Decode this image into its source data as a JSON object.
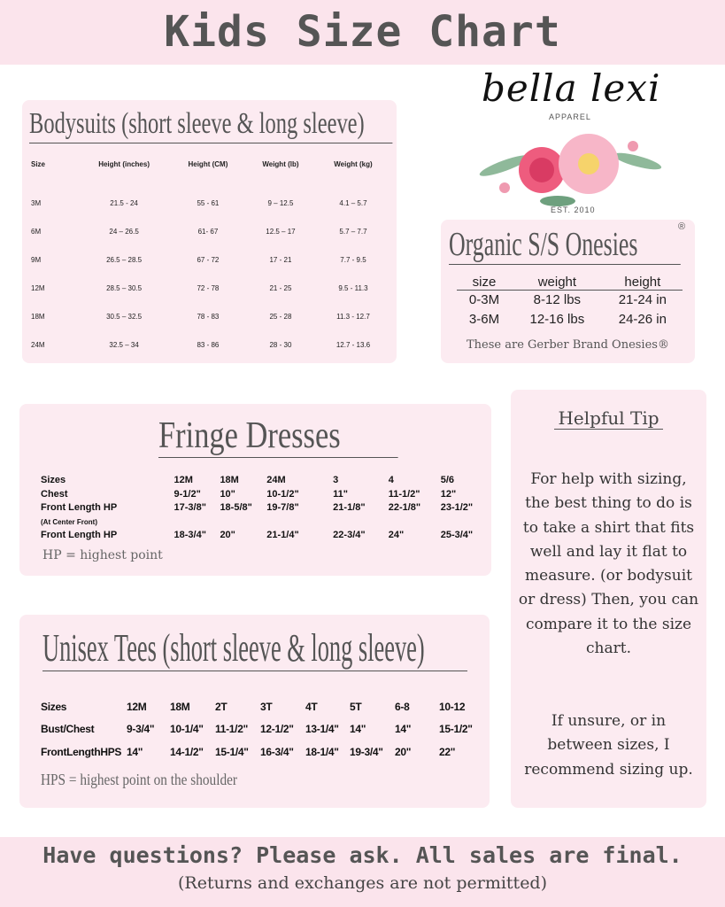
{
  "header": {
    "title": "Kids Size Chart"
  },
  "logo": {
    "name": "bella lexi",
    "sub": "APPAREL",
    "est": "EST. 2010"
  },
  "bodysuits": {
    "title": "Bodysuits (short sleeve & long sleeve)",
    "columns": [
      "Size",
      "Height (inches)",
      "Height (CM)",
      "Weight (lb)",
      "Weight (kg)"
    ],
    "rows": [
      [
        "3M",
        "21.5 - 24",
        "55 - 61",
        "9 – 12.5",
        "4.1 – 5.7"
      ],
      [
        "6M",
        "24 – 26.5",
        "61- 67",
        "12.5 – 17",
        "5.7 – 7.7"
      ],
      [
        "9M",
        "26.5 – 28.5",
        "67 - 72",
        "17 - 21",
        "7.7 - 9.5"
      ],
      [
        "12M",
        "28.5 – 30.5",
        "72 - 78",
        "21 - 25",
        "9.5 - 11.3"
      ],
      [
        "18M",
        "30.5 – 32.5",
        "78 - 83",
        "25 - 28",
        "11.3 - 12.7"
      ],
      [
        "24M",
        "32.5 – 34",
        "83 - 86",
        "28 - 30",
        "12.7 - 13.6"
      ]
    ]
  },
  "organic": {
    "title": "Organic S/S Onesies",
    "registered": "®",
    "columns": [
      "size",
      "weight",
      "height"
    ],
    "rows": [
      [
        "0-3M",
        "8-12 lbs",
        "21-24 in"
      ],
      [
        "3-6M",
        "12-16 lbs",
        "24-26 in"
      ]
    ],
    "note": "These are Gerber Brand Onesies®"
  },
  "fringe": {
    "title": "Fringe Dresses",
    "rows": [
      [
        "Sizes",
        "12M",
        "18M",
        "24M",
        "3",
        "4",
        "5/6"
      ],
      [
        "Chest",
        "9-1/2\"",
        "10\"",
        "10-1/2\"",
        "11\"",
        "11-1/2\"",
        "12\""
      ],
      [
        "Front Length HP",
        "17-3/8\"",
        "18-5/8\"",
        "19-7/8\"",
        "21-1/8\"",
        "22-1/8\"",
        "23-1/2\""
      ],
      [
        "(At Center Front)",
        "",
        "",
        "",
        "",
        "",
        ""
      ],
      [
        "Front Length HP",
        "18-3/4\"",
        "20\"",
        "21-1/4\"",
        "22-3/4\"",
        "24\"",
        "25-3/4\""
      ]
    ],
    "note": "HP = highest point"
  },
  "tees": {
    "title": "Unisex Tees (short sleeve & long sleeve)",
    "rows": [
      [
        "Sizes",
        "12M",
        "18M",
        "2T",
        "3T",
        "4T",
        "5T",
        "6-8",
        "10-12"
      ],
      [
        "Bust/Chest",
        "9-3/4\"",
        "10-1/4\"",
        "11-1/2\"",
        "12-1/2\"",
        "13-1/4\"",
        "14\"",
        "14\"",
        "15-1/2\""
      ],
      [
        "FrontLengthHPS",
        "14\"",
        "14-1/2\"",
        "15-1/4\"",
        "16-3/4\"",
        "18-1/4\"",
        "19-3/4\"",
        "20\"",
        "22\""
      ]
    ],
    "note": "HPS = highest point on the shoulder"
  },
  "tip": {
    "title": "Helpful Tip",
    "body": "For help with sizing, the best thing to do is to take a shirt that fits well and lay it flat to measure. (or bodysuit or dress) Then, you can compare it to the size chart.",
    "body2": "If unsure, or in between sizes, I recommend sizing up."
  },
  "footer": {
    "line1": "Have questions? Please ask. All sales are final.",
    "line2": "(Returns and exchanges are not permitted)"
  },
  "colors": {
    "band": "#fbe4ec",
    "card": "#fcebf1",
    "text": "#555555"
  }
}
